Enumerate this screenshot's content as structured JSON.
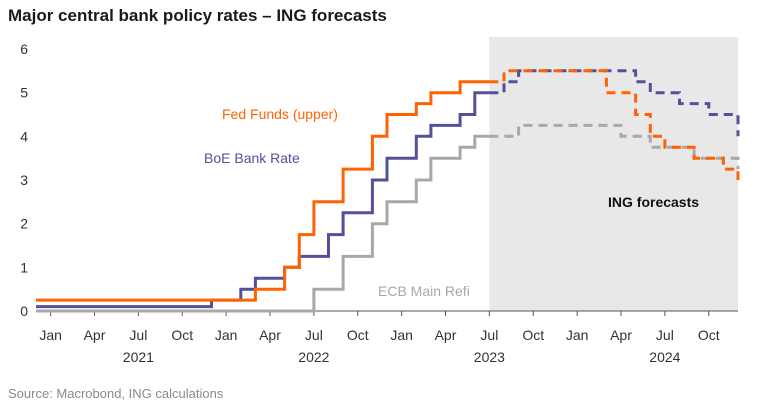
{
  "title": "Major central bank policy rates – ING forecasts",
  "source": "Source: Macrobond, ING calculations",
  "chart_data": {
    "type": "line",
    "step": true,
    "x_unit": "month",
    "xlim": [
      "2020-12",
      "2024-12"
    ],
    "ylim": [
      0,
      6
    ],
    "yticks": [
      0,
      1,
      2,
      3,
      4,
      5,
      6
    ],
    "x_tick_labels": [
      {
        "label": "Jan",
        "date": "2021-01"
      },
      {
        "label": "Apr",
        "date": "2021-04"
      },
      {
        "label": "Jul",
        "date": "2021-07"
      },
      {
        "label": "Oct",
        "date": "2021-10"
      },
      {
        "label": "Jan",
        "date": "2022-01"
      },
      {
        "label": "Apr",
        "date": "2022-04"
      },
      {
        "label": "Jul",
        "date": "2022-07"
      },
      {
        "label": "Oct",
        "date": "2022-10"
      },
      {
        "label": "Jan",
        "date": "2023-01"
      },
      {
        "label": "Apr",
        "date": "2023-04"
      },
      {
        "label": "Jul",
        "date": "2023-07"
      },
      {
        "label": "Oct",
        "date": "2023-10"
      },
      {
        "label": "Jan",
        "date": "2024-01"
      },
      {
        "label": "Apr",
        "date": "2024-04"
      },
      {
        "label": "Jul",
        "date": "2024-07"
      },
      {
        "label": "Oct",
        "date": "2024-10"
      }
    ],
    "year_labels": [
      {
        "label": "2021",
        "date": "2021-07"
      },
      {
        "label": "2022",
        "date": "2022-07"
      },
      {
        "label": "2023",
        "date": "2023-07"
      },
      {
        "label": "2024",
        "date": "2024-07"
      }
    ],
    "forecast_region": {
      "label": "ING forecasts",
      "from": "2023-07",
      "to": "2024-12"
    },
    "grid": false,
    "series": [
      {
        "name": "Fed Funds (upper)",
        "color": "#ff6200",
        "actual": [
          [
            "2020-12",
            0.25
          ],
          [
            "2022-03",
            0.5
          ],
          [
            "2022-05",
            1.0
          ],
          [
            "2022-06",
            1.75
          ],
          [
            "2022-07",
            2.5
          ],
          [
            "2022-09",
            3.25
          ],
          [
            "2022-11",
            4.0
          ],
          [
            "2022-12",
            4.5
          ],
          [
            "2023-02",
            4.75
          ],
          [
            "2023-03",
            5.0
          ],
          [
            "2023-05",
            5.25
          ],
          [
            "2023-07",
            5.25
          ]
        ],
        "forecast": [
          [
            "2023-07",
            5.25
          ],
          [
            "2023-08",
            5.5
          ],
          [
            "2024-03",
            5.0
          ],
          [
            "2024-05",
            4.5
          ],
          [
            "2024-06",
            4.0
          ],
          [
            "2024-07",
            3.75
          ],
          [
            "2024-09",
            3.5
          ],
          [
            "2024-11",
            3.25
          ],
          [
            "2024-12",
            3.0
          ]
        ]
      },
      {
        "name": "BoE Bank Rate",
        "color": "#525199",
        "actual": [
          [
            "2020-12",
            0.1
          ],
          [
            "2021-12",
            0.25
          ],
          [
            "2022-02",
            0.5
          ],
          [
            "2022-03",
            0.75
          ],
          [
            "2022-05",
            1.0
          ],
          [
            "2022-06",
            1.25
          ],
          [
            "2022-08",
            1.75
          ],
          [
            "2022-09",
            2.25
          ],
          [
            "2022-11",
            3.0
          ],
          [
            "2022-12",
            3.5
          ],
          [
            "2023-02",
            4.0
          ],
          [
            "2023-03",
            4.25
          ],
          [
            "2023-05",
            4.5
          ],
          [
            "2023-06",
            5.0
          ],
          [
            "2023-07",
            5.0
          ]
        ],
        "forecast": [
          [
            "2023-07",
            5.0
          ],
          [
            "2023-08",
            5.25
          ],
          [
            "2023-09",
            5.5
          ],
          [
            "2024-05",
            5.25
          ],
          [
            "2024-06",
            5.0
          ],
          [
            "2024-08",
            4.75
          ],
          [
            "2024-10",
            4.5
          ],
          [
            "2024-12",
            4.0
          ]
        ]
      },
      {
        "name": "ECB Main Refi",
        "color": "#a8a8a8",
        "actual": [
          [
            "2020-12",
            0.0
          ],
          [
            "2022-07",
            0.5
          ],
          [
            "2022-09",
            1.25
          ],
          [
            "2022-11",
            2.0
          ],
          [
            "2022-12",
            2.5
          ],
          [
            "2023-02",
            3.0
          ],
          [
            "2023-03",
            3.5
          ],
          [
            "2023-05",
            3.75
          ],
          [
            "2023-06",
            4.0
          ],
          [
            "2023-07",
            4.0
          ]
        ],
        "forecast": [
          [
            "2023-07",
            4.0
          ],
          [
            "2023-09",
            4.25
          ],
          [
            "2024-04",
            4.0
          ],
          [
            "2024-06",
            3.75
          ],
          [
            "2024-09",
            3.5
          ],
          [
            "2024-12",
            3.25
          ]
        ]
      }
    ],
    "annotations": [
      {
        "series": "Fed Funds (upper)",
        "text": "Fed Funds (upper)",
        "color": "#ff6200"
      },
      {
        "series": "BoE Bank Rate",
        "text": "BoE Bank Rate",
        "color": "#525199"
      },
      {
        "series": "ECB Main Refi",
        "text": "ECB Main Refi",
        "color": "#a8a8a8"
      }
    ]
  }
}
